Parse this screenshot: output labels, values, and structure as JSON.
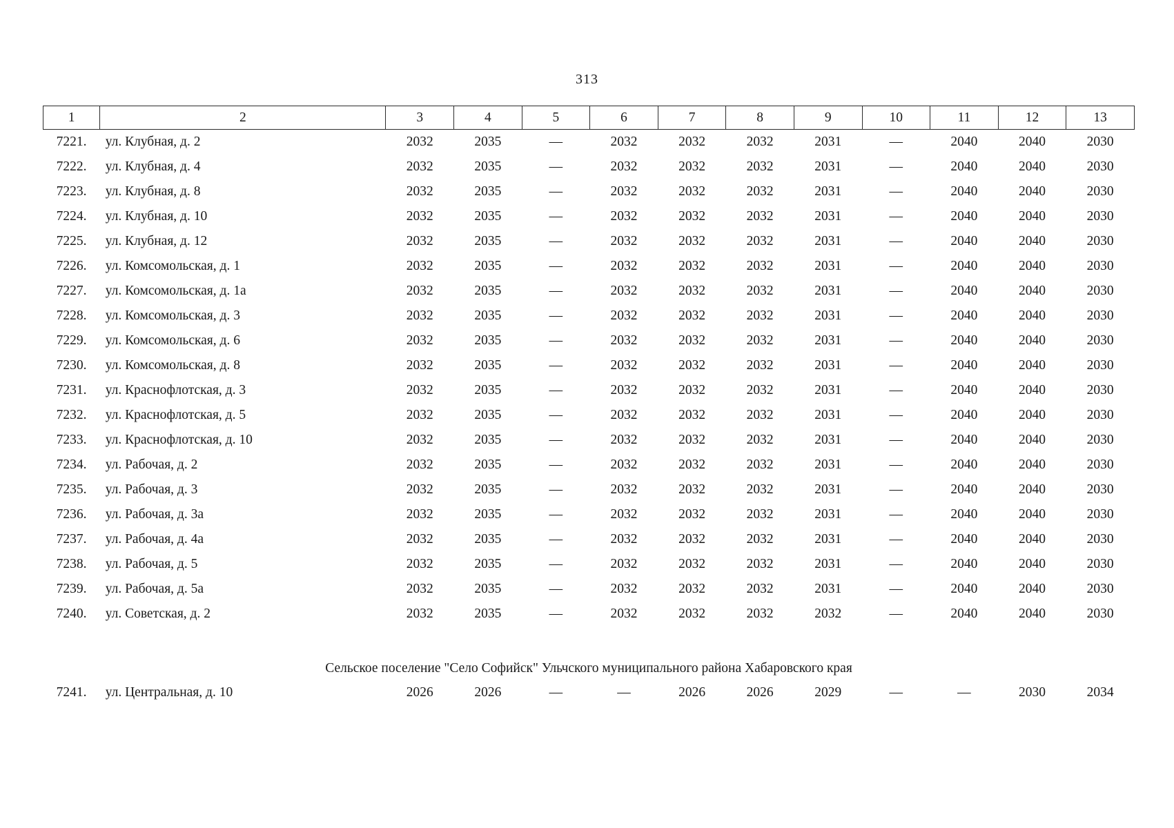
{
  "page": {
    "number": "313"
  },
  "table": {
    "header": [
      "1",
      "2",
      "3",
      "4",
      "5",
      "6",
      "7",
      "8",
      "9",
      "10",
      "11",
      "12",
      "13"
    ],
    "rows": [
      {
        "num": "7221.",
        "address": "ул. Клубная, д. 2",
        "values": [
          "2032",
          "2035",
          "—",
          "2032",
          "2032",
          "2032",
          "2031",
          "—",
          "2040",
          "2040",
          "2030"
        ]
      },
      {
        "num": "7222.",
        "address": "ул. Клубная, д. 4",
        "values": [
          "2032",
          "2035",
          "—",
          "2032",
          "2032",
          "2032",
          "2031",
          "—",
          "2040",
          "2040",
          "2030"
        ]
      },
      {
        "num": "7223.",
        "address": "ул. Клубная, д. 8",
        "values": [
          "2032",
          "2035",
          "—",
          "2032",
          "2032",
          "2032",
          "2031",
          "—",
          "2040",
          "2040",
          "2030"
        ]
      },
      {
        "num": "7224.",
        "address": "ул. Клубная, д. 10",
        "values": [
          "2032",
          "2035",
          "—",
          "2032",
          "2032",
          "2032",
          "2031",
          "—",
          "2040",
          "2040",
          "2030"
        ]
      },
      {
        "num": "7225.",
        "address": "ул. Клубная, д. 12",
        "values": [
          "2032",
          "2035",
          "—",
          "2032",
          "2032",
          "2032",
          "2031",
          "—",
          "2040",
          "2040",
          "2030"
        ]
      },
      {
        "num": "7226.",
        "address": "ул. Комсомольская, д. 1",
        "values": [
          "2032",
          "2035",
          "—",
          "2032",
          "2032",
          "2032",
          "2031",
          "—",
          "2040",
          "2040",
          "2030"
        ]
      },
      {
        "num": "7227.",
        "address": "ул. Комсомольская, д. 1а",
        "values": [
          "2032",
          "2035",
          "—",
          "2032",
          "2032",
          "2032",
          "2031",
          "—",
          "2040",
          "2040",
          "2030"
        ]
      },
      {
        "num": "7228.",
        "address": "ул. Комсомольская, д. 3",
        "values": [
          "2032",
          "2035",
          "—",
          "2032",
          "2032",
          "2032",
          "2031",
          "—",
          "2040",
          "2040",
          "2030"
        ]
      },
      {
        "num": "7229.",
        "address": "ул. Комсомольская, д. 6",
        "values": [
          "2032",
          "2035",
          "—",
          "2032",
          "2032",
          "2032",
          "2031",
          "—",
          "2040",
          "2040",
          "2030"
        ]
      },
      {
        "num": "7230.",
        "address": "ул. Комсомольская, д. 8",
        "values": [
          "2032",
          "2035",
          "—",
          "2032",
          "2032",
          "2032",
          "2031",
          "—",
          "2040",
          "2040",
          "2030"
        ]
      },
      {
        "num": "7231.",
        "address": "ул. Краснофлотская, д. 3",
        "values": [
          "2032",
          "2035",
          "—",
          "2032",
          "2032",
          "2032",
          "2031",
          "—",
          "2040",
          "2040",
          "2030"
        ]
      },
      {
        "num": "7232.",
        "address": "ул. Краснофлотская, д. 5",
        "values": [
          "2032",
          "2035",
          "—",
          "2032",
          "2032",
          "2032",
          "2031",
          "—",
          "2040",
          "2040",
          "2030"
        ]
      },
      {
        "num": "7233.",
        "address": "ул. Краснофлотская, д. 10",
        "values": [
          "2032",
          "2035",
          "—",
          "2032",
          "2032",
          "2032",
          "2031",
          "—",
          "2040",
          "2040",
          "2030"
        ]
      },
      {
        "num": "7234.",
        "address": "ул. Рабочая, д. 2",
        "values": [
          "2032",
          "2035",
          "—",
          "2032",
          "2032",
          "2032",
          "2031",
          "—",
          "2040",
          "2040",
          "2030"
        ]
      },
      {
        "num": "7235.",
        "address": "ул. Рабочая, д. 3",
        "values": [
          "2032",
          "2035",
          "—",
          "2032",
          "2032",
          "2032",
          "2031",
          "—",
          "2040",
          "2040",
          "2030"
        ]
      },
      {
        "num": "7236.",
        "address": "ул. Рабочая, д. 3а",
        "values": [
          "2032",
          "2035",
          "—",
          "2032",
          "2032",
          "2032",
          "2031",
          "—",
          "2040",
          "2040",
          "2030"
        ]
      },
      {
        "num": "7237.",
        "address": "ул. Рабочая, д. 4а",
        "values": [
          "2032",
          "2035",
          "—",
          "2032",
          "2032",
          "2032",
          "2031",
          "—",
          "2040",
          "2040",
          "2030"
        ]
      },
      {
        "num": "7238.",
        "address": "ул. Рабочая, д. 5",
        "values": [
          "2032",
          "2035",
          "—",
          "2032",
          "2032",
          "2032",
          "2031",
          "—",
          "2040",
          "2040",
          "2030"
        ]
      },
      {
        "num": "7239.",
        "address": "ул. Рабочая, д. 5а",
        "values": [
          "2032",
          "2035",
          "—",
          "2032",
          "2032",
          "2032",
          "2031",
          "—",
          "2040",
          "2040",
          "2030"
        ]
      },
      {
        "num": "7240.",
        "address": "ул. Советская, д. 2",
        "values": [
          "2032",
          "2035",
          "—",
          "2032",
          "2032",
          "2032",
          "2032",
          "—",
          "2040",
          "2040",
          "2030"
        ]
      }
    ],
    "section": {
      "title": "Сельское поселение \"Село Софийск\" Ульчского муниципального района Хабаровского края",
      "rows": [
        {
          "num": "7241.",
          "address": "ул. Центральная, д. 10",
          "values": [
            "2026",
            "2026",
            "—",
            "—",
            "2026",
            "2026",
            "2029",
            "—",
            "—",
            "2030",
            "2034"
          ]
        }
      ]
    }
  }
}
